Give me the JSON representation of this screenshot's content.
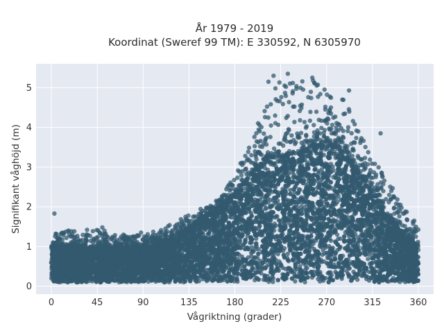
{
  "chart_data": {
    "type": "scatter",
    "title": "År 1979 - 2019",
    "subtitle": "Koordinat (Sweref 99 TM): E 330592, N 6305970",
    "xlabel": "Vågriktning (grader)",
    "ylabel": "Signifikant våghöjd (m)",
    "xlim": [
      -15,
      375
    ],
    "ylim": [
      -0.2,
      5.6
    ],
    "xticks": [
      0,
      45,
      90,
      135,
      180,
      225,
      270,
      315,
      360
    ],
    "yticks": [
      0,
      1,
      2,
      3,
      4,
      5
    ],
    "grid": true,
    "colors": {
      "marker": "#33596f",
      "plot_background": "#e5e9f2",
      "grid": "#ffffff"
    },
    "envelope": {
      "direction_deg": [
        0,
        15,
        30,
        45,
        60,
        75,
        90,
        105,
        120,
        135,
        150,
        165,
        180,
        195,
        210,
        225,
        240,
        255,
        270,
        285,
        300,
        315,
        330,
        345,
        360
      ],
      "typical_upper_hs_m": [
        1.0,
        1.0,
        1.0,
        0.95,
        0.95,
        0.95,
        1.0,
        1.05,
        1.2,
        1.45,
        1.7,
        1.95,
        2.3,
        2.8,
        3.2,
        3.3,
        3.35,
        3.5,
        3.6,
        3.4,
        2.9,
        2.4,
        1.8,
        1.3,
        1.0
      ],
      "max_hs_m": [
        1.3,
        1.4,
        1.4,
        1.5,
        1.3,
        1.3,
        1.35,
        1.4,
        1.6,
        1.8,
        2.0,
        2.2,
        2.8,
        3.7,
        4.5,
        5.3,
        5.35,
        5.25,
        4.95,
        4.9,
        4.0,
        3.2,
        2.7,
        2.0,
        1.55
      ]
    },
    "outliers": [
      {
        "x": 3,
        "y": 1.83
      },
      {
        "x": 35,
        "y": 1.42
      },
      {
        "x": 50,
        "y": 1.48
      },
      {
        "x": 88,
        "y": 1.35
      },
      {
        "x": 213,
        "y": 5.15
      },
      {
        "x": 218,
        "y": 5.3
      },
      {
        "x": 232,
        "y": 5.35
      },
      {
        "x": 256,
        "y": 5.25
      },
      {
        "x": 268,
        "y": 4.95
      },
      {
        "x": 292,
        "y": 4.93
      },
      {
        "x": 323,
        "y": 3.85
      },
      {
        "x": 355,
        "y": 1.57
      }
    ]
  }
}
